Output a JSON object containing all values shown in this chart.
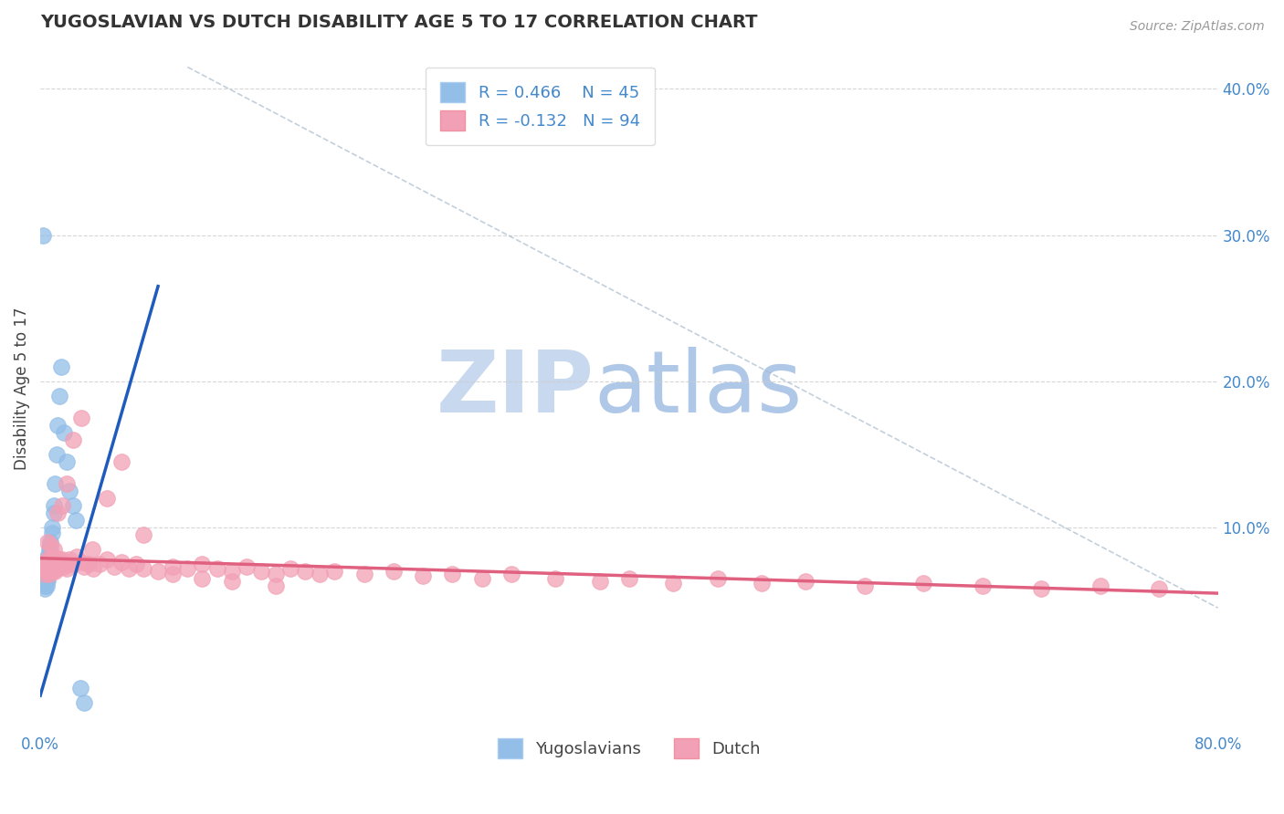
{
  "title": "YUGOSLAVIAN VS DUTCH DISABILITY AGE 5 TO 17 CORRELATION CHART",
  "source": "Source: ZipAtlas.com",
  "ylabel": "Disability Age 5 to 17",
  "yticks_right": [
    "40.0%",
    "30.0%",
    "20.0%",
    "10.0%"
  ],
  "yticks_right_vals": [
    0.4,
    0.3,
    0.2,
    0.1
  ],
  "xlim": [
    0.0,
    0.8
  ],
  "ylim": [
    -0.04,
    0.43
  ],
  "legend1_r": "0.466",
  "legend1_n": "45",
  "legend2_r": "-0.132",
  "legend2_n": "94",
  "yug_color": "#92BEE8",
  "dutch_color": "#F2A0B5",
  "yug_line_color": "#1E5BBD",
  "dutch_line_color": "#E06080",
  "background_color": "#FFFFFF",
  "watermark_zip": "ZIP",
  "watermark_atlas": "atlas",
  "watermark_color_zip": "#C8D8EE",
  "watermark_color_atlas": "#B0C8E8",
  "title_color": "#333333",
  "axis_color": "#4488CC",
  "grid_color": "#CCCCCC",
  "yug_trendline_x": [
    0.0,
    0.08
  ],
  "yug_trendline_y": [
    -0.015,
    0.265
  ],
  "dutch_trendline_x": [
    0.0,
    0.8
  ],
  "dutch_trendline_y": [
    0.079,
    0.055
  ],
  "dashed_line_x": [
    0.1,
    0.8
  ],
  "dashed_line_y": [
    0.415,
    0.045
  ],
  "yug_scatter_x": [
    0.002,
    0.002,
    0.002,
    0.003,
    0.003,
    0.003,
    0.003,
    0.003,
    0.003,
    0.004,
    0.004,
    0.004,
    0.004,
    0.004,
    0.004,
    0.005,
    0.005,
    0.005,
    0.005,
    0.005,
    0.005,
    0.006,
    0.006,
    0.006,
    0.006,
    0.007,
    0.007,
    0.007,
    0.008,
    0.008,
    0.009,
    0.009,
    0.01,
    0.011,
    0.012,
    0.013,
    0.014,
    0.016,
    0.018,
    0.02,
    0.022,
    0.024,
    0.027,
    0.03,
    0.002
  ],
  "yug_scatter_y": [
    0.07,
    0.068,
    0.065,
    0.07,
    0.068,
    0.065,
    0.063,
    0.06,
    0.058,
    0.075,
    0.072,
    0.07,
    0.067,
    0.064,
    0.06,
    0.08,
    0.077,
    0.073,
    0.07,
    0.067,
    0.064,
    0.085,
    0.082,
    0.078,
    0.074,
    0.09,
    0.087,
    0.083,
    0.1,
    0.096,
    0.115,
    0.11,
    0.13,
    0.15,
    0.17,
    0.19,
    0.21,
    0.165,
    0.145,
    0.125,
    0.115,
    0.105,
    -0.01,
    -0.02,
    0.3
  ],
  "dutch_scatter_x": [
    0.002,
    0.003,
    0.003,
    0.004,
    0.004,
    0.005,
    0.005,
    0.005,
    0.006,
    0.006,
    0.006,
    0.007,
    0.007,
    0.007,
    0.008,
    0.008,
    0.008,
    0.009,
    0.009,
    0.01,
    0.01,
    0.01,
    0.011,
    0.011,
    0.012,
    0.012,
    0.013,
    0.014,
    0.015,
    0.016,
    0.017,
    0.018,
    0.02,
    0.022,
    0.025,
    0.028,
    0.03,
    0.033,
    0.036,
    0.04,
    0.045,
    0.05,
    0.055,
    0.06,
    0.065,
    0.07,
    0.08,
    0.09,
    0.1,
    0.11,
    0.12,
    0.13,
    0.14,
    0.15,
    0.16,
    0.17,
    0.18,
    0.19,
    0.2,
    0.22,
    0.24,
    0.26,
    0.28,
    0.3,
    0.32,
    0.35,
    0.38,
    0.4,
    0.43,
    0.46,
    0.49,
    0.52,
    0.56,
    0.6,
    0.64,
    0.68,
    0.72,
    0.76,
    0.005,
    0.007,
    0.009,
    0.012,
    0.015,
    0.018,
    0.022,
    0.028,
    0.035,
    0.045,
    0.055,
    0.07,
    0.09,
    0.11,
    0.13,
    0.16
  ],
  "dutch_scatter_y": [
    0.075,
    0.072,
    0.068,
    0.075,
    0.07,
    0.078,
    0.074,
    0.07,
    0.076,
    0.072,
    0.068,
    0.079,
    0.074,
    0.07,
    0.079,
    0.075,
    0.07,
    0.076,
    0.072,
    0.079,
    0.075,
    0.07,
    0.076,
    0.072,
    0.079,
    0.074,
    0.075,
    0.076,
    0.078,
    0.073,
    0.075,
    0.072,
    0.078,
    0.075,
    0.08,
    0.076,
    0.073,
    0.075,
    0.072,
    0.075,
    0.078,
    0.073,
    0.076,
    0.072,
    0.075,
    0.072,
    0.07,
    0.073,
    0.072,
    0.075,
    0.072,
    0.07,
    0.073,
    0.07,
    0.068,
    0.072,
    0.07,
    0.068,
    0.07,
    0.068,
    0.07,
    0.067,
    0.068,
    0.065,
    0.068,
    0.065,
    0.063,
    0.065,
    0.062,
    0.065,
    0.062,
    0.063,
    0.06,
    0.062,
    0.06,
    0.058,
    0.06,
    0.058,
    0.09,
    0.088,
    0.085,
    0.11,
    0.115,
    0.13,
    0.16,
    0.175,
    0.085,
    0.12,
    0.145,
    0.095,
    0.068,
    0.065,
    0.063,
    0.06
  ]
}
